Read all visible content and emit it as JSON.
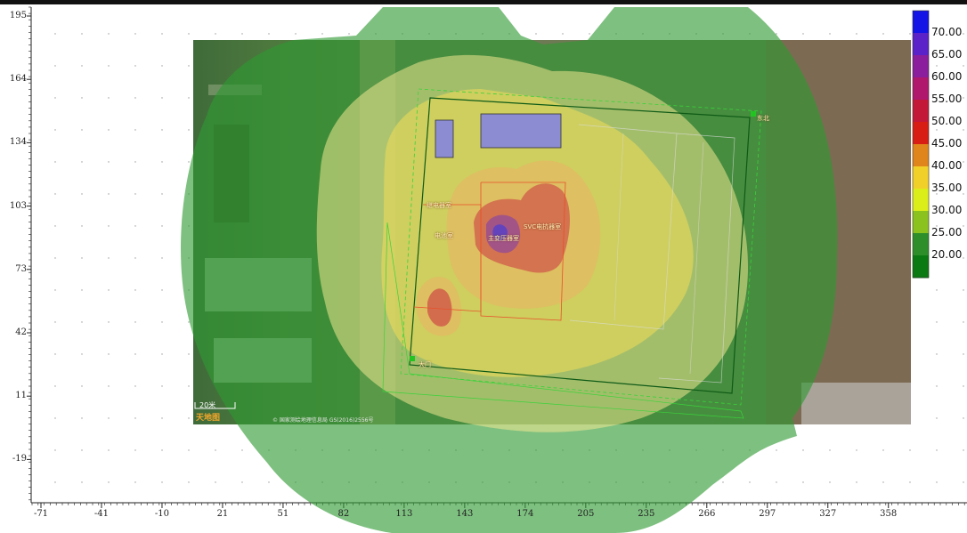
{
  "y_axis_ticks": [
    "195",
    "164",
    "134",
    "103",
    "73",
    "42",
    "11",
    "-19"
  ],
  "x_axis_ticks": [
    "-71",
    "-41",
    "-10",
    "21",
    "51",
    "82",
    "113",
    "143",
    "174",
    "205",
    "235",
    "266",
    "297",
    "327",
    "358"
  ],
  "legend": {
    "levels": [
      "70.00",
      "65.00",
      "60.00",
      "55.00",
      "50.00",
      "45.00",
      "40.00",
      "35.00",
      "30.00",
      "25.00",
      "20.00"
    ],
    "colors": [
      "#1414e6",
      "#5a22c8",
      "#8a1e9c",
      "#b0186e",
      "#c41838",
      "#d81e14",
      "#e0841c",
      "#f2d02a",
      "#dcee1a",
      "#8cc21e",
      "#2e8f2a",
      "#0c7a12"
    ]
  },
  "contour_colors": {
    "outer": "#2e9a32",
    "light_yellow": "#f0e890",
    "yellow": "#f2dc55",
    "orange": "#e9b462",
    "red": "#c8283e",
    "purple": "#7a3ab6",
    "blue": "#3a3ae0"
  },
  "map_labels": {
    "scale": "20米",
    "logo": "天地图",
    "credit": "© 国家测绘地理信息局 GS(2016)2556号",
    "north": "东北",
    "hall": "主变压器室",
    "reactor": "SVC电抗器室",
    "office": "继电器室",
    "battery": "电池室",
    "gate": "大门"
  }
}
